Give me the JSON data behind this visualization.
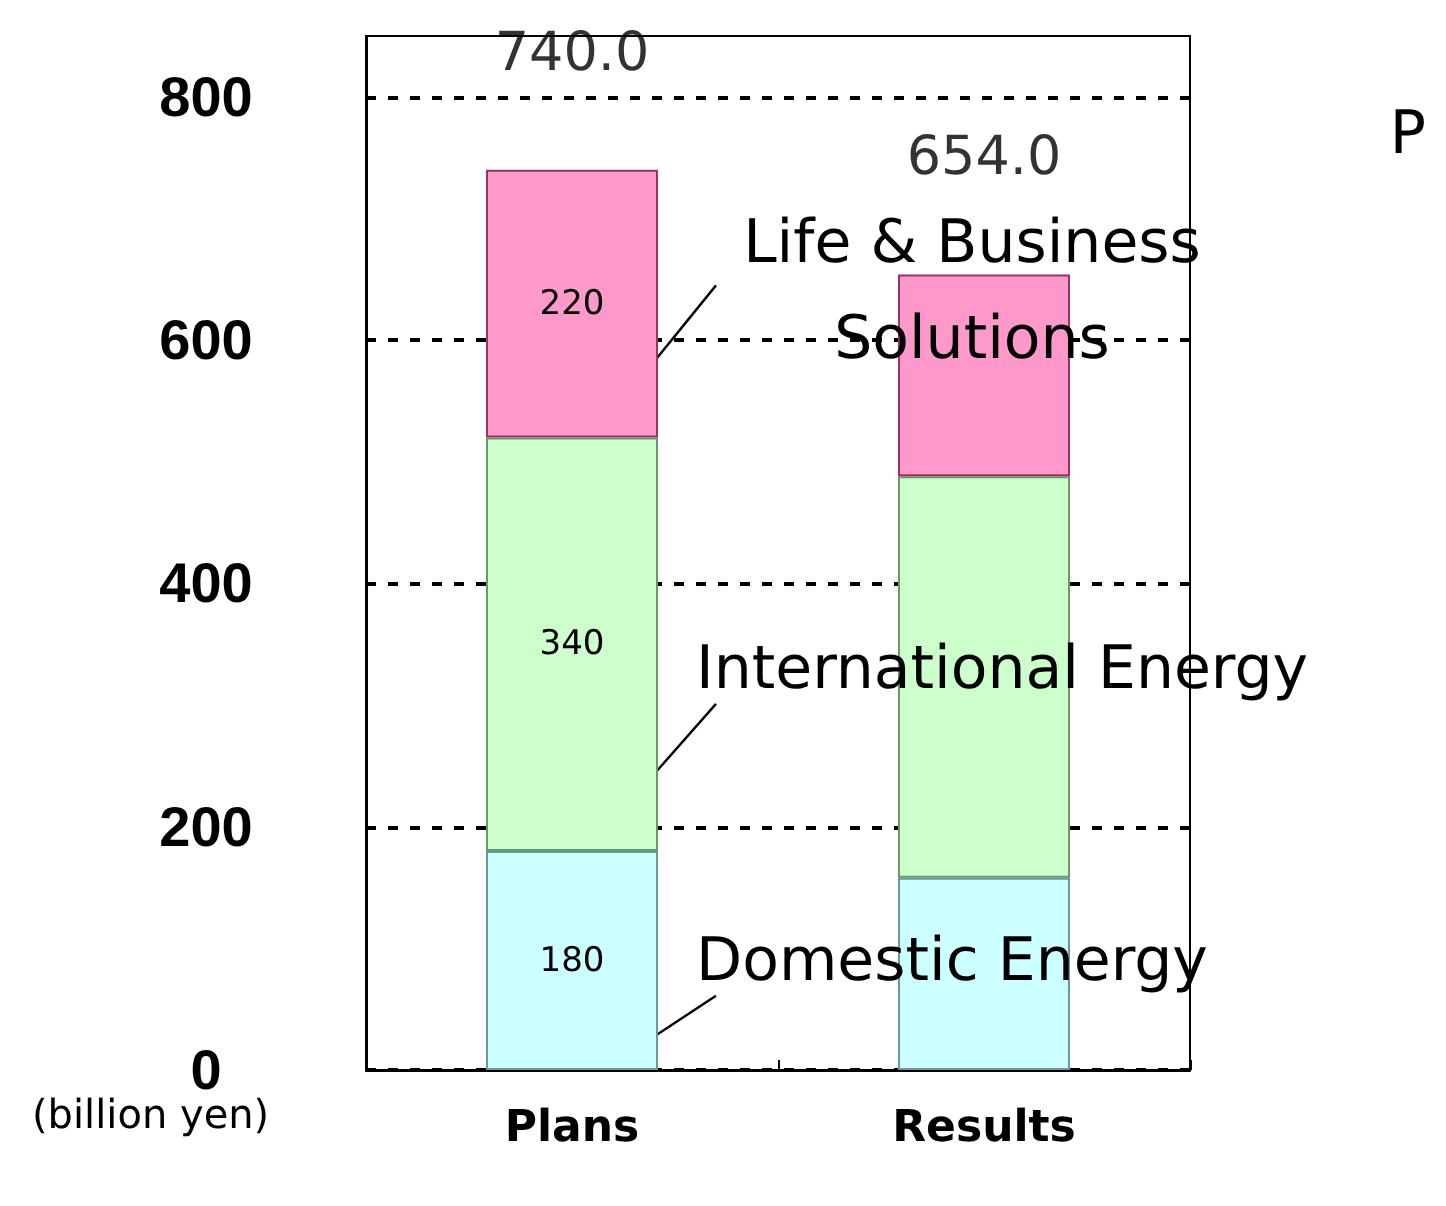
{
  "chart_data": {
    "type": "bar",
    "stacked": true,
    "categories": [
      "Plans",
      "Results"
    ],
    "series": [
      {
        "name": "Domestic Energy",
        "color": "#ccffff",
        "values": [
          180,
          158
        ],
        "value_labels": [
          "180",
          null
        ]
      },
      {
        "name": "International Energy",
        "color": "#ccffcc",
        "values": [
          340,
          330
        ],
        "value_labels": [
          "340",
          null
        ]
      },
      {
        "name": "Life & Business Solutions",
        "color": "#ff99cc",
        "values": [
          220,
          166
        ],
        "value_labels": [
          "220",
          null
        ]
      }
    ],
    "totals": [
      "740.0",
      "654.0"
    ],
    "ylabel": "(billion yen)",
    "ylim": [
      0,
      850
    ],
    "yticks": [
      0,
      200,
      400,
      600,
      800
    ],
    "grid": "y",
    "legend": false,
    "annotations": [
      "P"
    ]
  }
}
